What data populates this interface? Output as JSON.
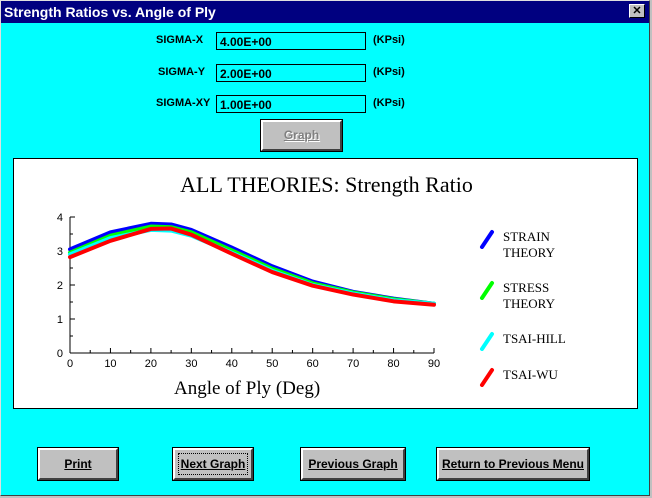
{
  "window": {
    "title": "Strength Ratios vs. Angle of Ply",
    "close_glyph": "✕"
  },
  "inputs": [
    {
      "label": "SIGMA-X",
      "value": "4.00E+00",
      "unit": "(KPsi)"
    },
    {
      "label": "SIGMA-Y",
      "value": "2.00E+00",
      "unit": "(KPsi)"
    },
    {
      "label": "SIGMA-XY",
      "value": "1.00E+00",
      "unit": "(KPsi)"
    }
  ],
  "graph_button": {
    "label": "Graph"
  },
  "buttons": {
    "print": "Print",
    "next_graph": "Next Graph",
    "previous_graph": "Previous Graph",
    "return_menu": "Return to Previous Menu"
  },
  "chart_data": {
    "type": "line",
    "title": "ALL THEORIES: Strength Ratio",
    "xlabel": "Angle of Ply (Deg)",
    "ylabel": "",
    "xlim": [
      0,
      90
    ],
    "ylim": [
      0,
      4
    ],
    "x_ticks": [
      "0",
      "10",
      "20",
      "30",
      "40",
      "50",
      "60",
      "70",
      "80",
      "90"
    ],
    "y_ticks": [
      "0",
      "1",
      "2",
      "3",
      "4"
    ],
    "x": [
      0,
      10,
      20,
      25,
      30,
      40,
      50,
      60,
      70,
      80,
      90
    ],
    "series": [
      {
        "name": "STRAIN\nTHEORY",
        "color": "#0000ff",
        "values": [
          3.05,
          3.55,
          3.8,
          3.78,
          3.62,
          3.1,
          2.55,
          2.1,
          1.8,
          1.6,
          1.45
        ]
      },
      {
        "name": "STRESS\nTHEORY",
        "color": "#00ff00",
        "values": [
          2.95,
          3.45,
          3.72,
          3.7,
          3.55,
          3.02,
          2.48,
          2.05,
          1.78,
          1.58,
          1.45
        ]
      },
      {
        "name": "TSAI-HILL",
        "color": "#00ffff",
        "values": [
          2.9,
          3.38,
          3.62,
          3.6,
          3.45,
          2.95,
          2.42,
          2.0,
          1.75,
          1.55,
          1.45
        ]
      },
      {
        "name": "TSAI-WU",
        "color": "#ff0000",
        "values": [
          2.82,
          3.3,
          3.65,
          3.66,
          3.48,
          2.92,
          2.38,
          1.98,
          1.72,
          1.52,
          1.42
        ]
      }
    ],
    "legend_position": "right",
    "grid": false
  }
}
